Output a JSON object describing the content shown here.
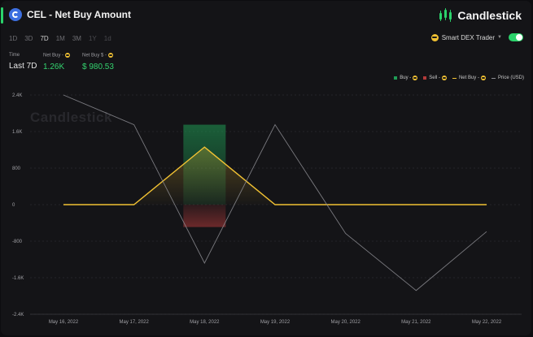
{
  "header": {
    "title": "CEL - Net Buy Amount",
    "brand": "Candlestick"
  },
  "ranges": [
    {
      "label": "1D",
      "state": "normal"
    },
    {
      "label": "3D",
      "state": "normal"
    },
    {
      "label": "7D",
      "state": "active"
    },
    {
      "label": "1M",
      "state": "normal"
    },
    {
      "label": "3M",
      "state": "normal"
    },
    {
      "label": "1Y",
      "state": "disabled"
    },
    {
      "label": "1d",
      "state": "disabled"
    }
  ],
  "trader": {
    "label": "Smart DEX Trader",
    "icon": "sunglasses-emoji-icon"
  },
  "stats": {
    "time": {
      "label": "Time",
      "value": "Last 7D"
    },
    "net_buy": {
      "label": "Net Buy - ",
      "value": "1.26K"
    },
    "net_buy_usd": {
      "label": "Net Buy $ - ",
      "value": "$ 980.53"
    }
  },
  "watermark": "Candlestick",
  "colors": {
    "accent": "#2bd36b",
    "buy": "#1f9d55",
    "sell": "#b33a3a",
    "net_buy": "#f2c233",
    "price": "#8c8c92",
    "positive_value": "#34d36f"
  },
  "chart_data": {
    "type": "line",
    "categories": [
      "May 16, 2022",
      "May 17, 2022",
      "May 18, 2022",
      "May 19, 2022",
      "May 20, 2022",
      "May 21, 2022",
      "May 22, 2022"
    ],
    "ylim": [
      -2400,
      2400
    ],
    "yticks": [
      "2.4K",
      "1.6K",
      "800",
      "0",
      "-800",
      "-1.6K",
      "-2.4K"
    ],
    "ytick_values": [
      2400,
      1600,
      800,
      0,
      -800,
      -1600,
      -2400
    ],
    "series": [
      {
        "name": "Buy - ",
        "kind": "bar",
        "color": "#1f9d55",
        "values": [
          0,
          0,
          1750,
          0,
          0,
          0,
          0
        ]
      },
      {
        "name": "Sell - ",
        "kind": "bar",
        "color": "#b33a3a",
        "values": [
          0,
          0,
          -490,
          0,
          0,
          0,
          0
        ]
      },
      {
        "name": "Net Buy - ",
        "kind": "line",
        "color": "#f2c233",
        "values": [
          0,
          0,
          1260,
          0,
          0,
          0,
          0
        ]
      },
      {
        "name": "Price (USD)",
        "kind": "line",
        "color": "#8c8c92",
        "values": [
          2400,
          1750,
          -1280,
          1750,
          -630,
          -1880,
          -590
        ]
      }
    ],
    "grid": "horizontal-dashed",
    "legend": "top-right"
  }
}
